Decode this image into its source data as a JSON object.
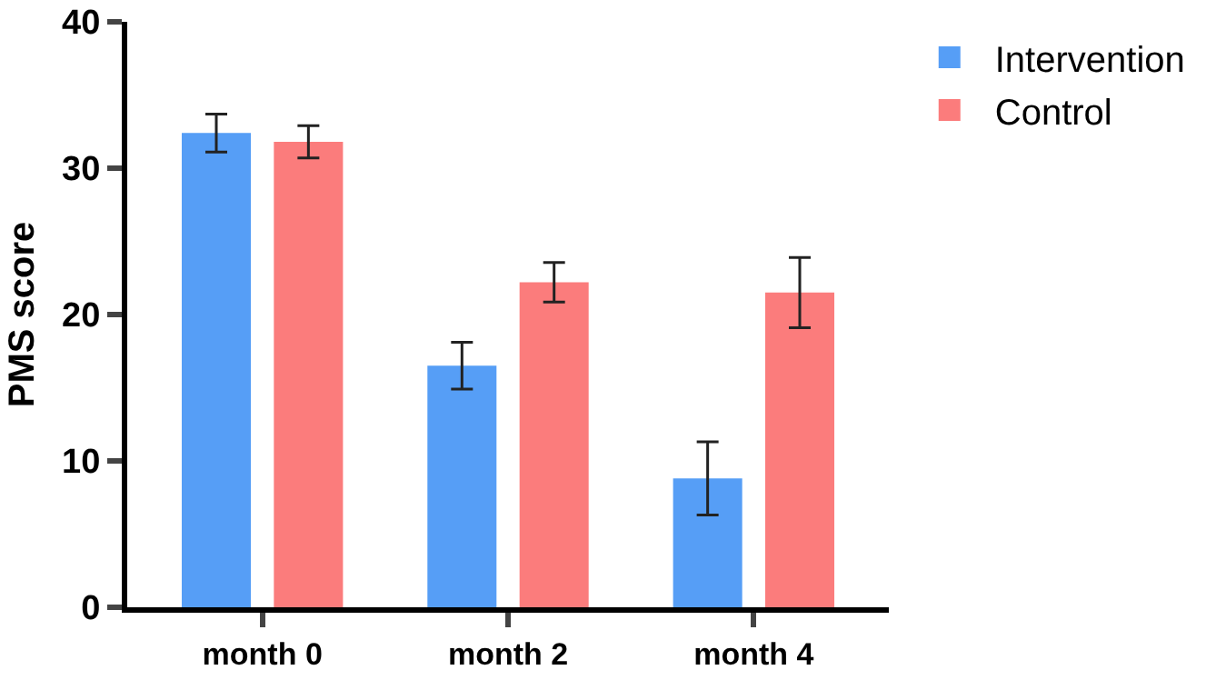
{
  "chart_data": {
    "type": "bar",
    "ylabel": "PMS score",
    "categories": [
      "month 0",
      "month 2",
      "month 4"
    ],
    "series": [
      {
        "name": "Intervention",
        "color": "#569ef6",
        "values": [
          32.4,
          16.5,
          8.8
        ],
        "errors": [
          1.3,
          1.6,
          2.5
        ]
      },
      {
        "name": "Control",
        "color": "#fb7c7c",
        "values": [
          31.8,
          22.2,
          21.5
        ],
        "errors": [
          1.1,
          1.35,
          2.4
        ]
      }
    ],
    "ylim": [
      0,
      40
    ],
    "yticks": [
      0,
      10,
      20,
      30,
      40
    ],
    "grid": false,
    "legend": "top right"
  }
}
